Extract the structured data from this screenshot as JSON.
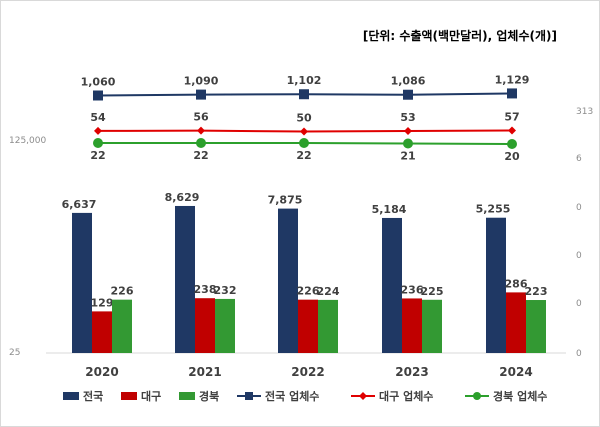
{
  "chart_data": {
    "type": "bar",
    "unit_note": "[단위: 수출액(백만달러), 업체수(개)]",
    "categories": [
      "2020",
      "2021",
      "2022",
      "2023",
      "2024"
    ],
    "series": [
      {
        "name": "전국",
        "kind": "bar",
        "color": "#1f3864",
        "values": [
          6637,
          8629,
          7875,
          5184,
          5255
        ],
        "labels": [
          "6,637",
          "8,629",
          "7,875",
          "5,184",
          "5,255"
        ]
      },
      {
        "name": "대구",
        "kind": "bar",
        "color": "#c00000",
        "values": [
          129,
          238,
          226,
          236,
          286
        ],
        "labels": [
          "129",
          "238",
          "226",
          "236",
          "286"
        ]
      },
      {
        "name": "경북",
        "kind": "bar",
        "color": "#339933",
        "values": [
          226,
          232,
          224,
          225,
          223
        ],
        "labels": [
          "226",
          "232",
          "224",
          "225",
          "223"
        ]
      },
      {
        "name": "전국 업체수",
        "kind": "line",
        "marker": "square",
        "color": "#1f3864",
        "values": [
          1060,
          1090,
          1102,
          1086,
          1129
        ],
        "labels": [
          "1,060",
          "1,090",
          "1,102",
          "1,086",
          "1,129"
        ]
      },
      {
        "name": "대구 업체수",
        "kind": "line",
        "marker": "diamond",
        "color": "#e00000",
        "values": [
          54,
          56,
          50,
          53,
          57
        ],
        "labels": [
          "54",
          "56",
          "50",
          "53",
          "57"
        ]
      },
      {
        "name": "경북 업체수",
        "kind": "line",
        "marker": "circle",
        "color": "#2ca02c",
        "values": [
          22,
          22,
          22,
          21,
          20
        ],
        "labels": [
          "22",
          "22",
          "22",
          "21",
          "20"
        ]
      }
    ],
    "left_axis_ticks": [
      "125,000",
      "25"
    ],
    "right_axis_ticks": [
      "313",
      "6",
      "0",
      "0",
      "0",
      "0"
    ],
    "legend_position": "bottom"
  }
}
